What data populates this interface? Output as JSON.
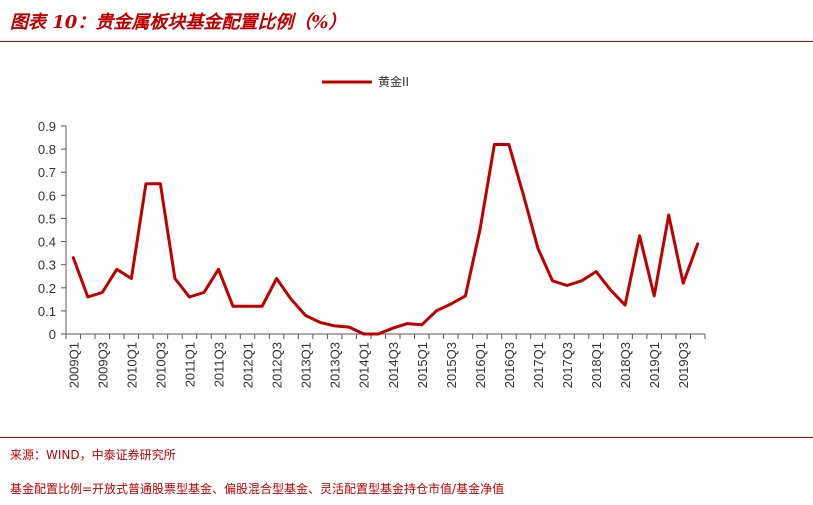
{
  "header": {
    "title": "图表 10：贵金属板块基金配置比例（%）"
  },
  "footer": {
    "source": "来源：WIND，中泰证券研究所",
    "note": "基金配置比例=开放式普通股票型基金、偏股混合型基金、灵活配置型基金持仓市值/基金净值"
  },
  "colors": {
    "accent": "#c00000",
    "line": "#c00000"
  },
  "chart_data": {
    "type": "line",
    "title": "",
    "xlabel": "",
    "ylabel": "",
    "ylim": [
      0,
      0.9
    ],
    "yticks": [
      "0",
      "0.1",
      "0.2",
      "0.3",
      "0.4",
      "0.5",
      "0.6",
      "0.7",
      "0.8",
      "0.9"
    ],
    "grid": false,
    "legend_position": "top-center",
    "categories": [
      "2009Q1",
      "2009Q2",
      "2009Q3",
      "2009Q4",
      "2010Q1",
      "2010Q2",
      "2010Q3",
      "2010Q4",
      "2011Q1",
      "2011Q2",
      "2011Q3",
      "2011Q4",
      "2012Q1",
      "2012Q2",
      "2012Q3",
      "2012Q4",
      "2013Q1",
      "2013Q2",
      "2013Q3",
      "2013Q4",
      "2014Q1",
      "2014Q2",
      "2014Q3",
      "2014Q4",
      "2015Q1",
      "2015Q2",
      "2015Q3",
      "2015Q4",
      "2016Q1",
      "2016Q2",
      "2016Q3",
      "2016Q4",
      "2017Q1",
      "2017Q2",
      "2017Q3",
      "2017Q4",
      "2018Q1",
      "2018Q2",
      "2018Q3",
      "2018Q4",
      "2019Q1",
      "2019Q2",
      "2019Q3",
      "2019Q4"
    ],
    "xtick_labels": [
      "2009Q1",
      "2009Q3",
      "2010Q1",
      "2010Q3",
      "2011Q1",
      "2011Q3",
      "2012Q1",
      "2012Q3",
      "2013Q1",
      "2013Q3",
      "2014Q1",
      "2014Q3",
      "2015Q1",
      "2015Q3",
      "2016Q1",
      "2016Q3",
      "2017Q1",
      "2017Q3",
      "2018Q1",
      "2018Q3",
      "2019Q1",
      "2019Q3"
    ],
    "series": [
      {
        "name": "黄金II",
        "values": [
          0.33,
          0.16,
          0.18,
          0.28,
          0.24,
          0.65,
          0.65,
          0.24,
          0.16,
          0.18,
          0.28,
          0.12,
          0.12,
          0.12,
          0.24,
          0.15,
          0.08,
          0.05,
          0.035,
          0.03,
          0.0,
          0.0,
          0.025,
          0.045,
          0.04,
          0.1,
          0.13,
          0.165,
          0.45,
          0.82,
          0.82,
          0.6,
          0.37,
          0.23,
          0.21,
          0.23,
          0.27,
          0.19,
          0.125,
          0.425,
          0.165,
          0.515,
          0.22,
          0.39
        ]
      }
    ]
  }
}
